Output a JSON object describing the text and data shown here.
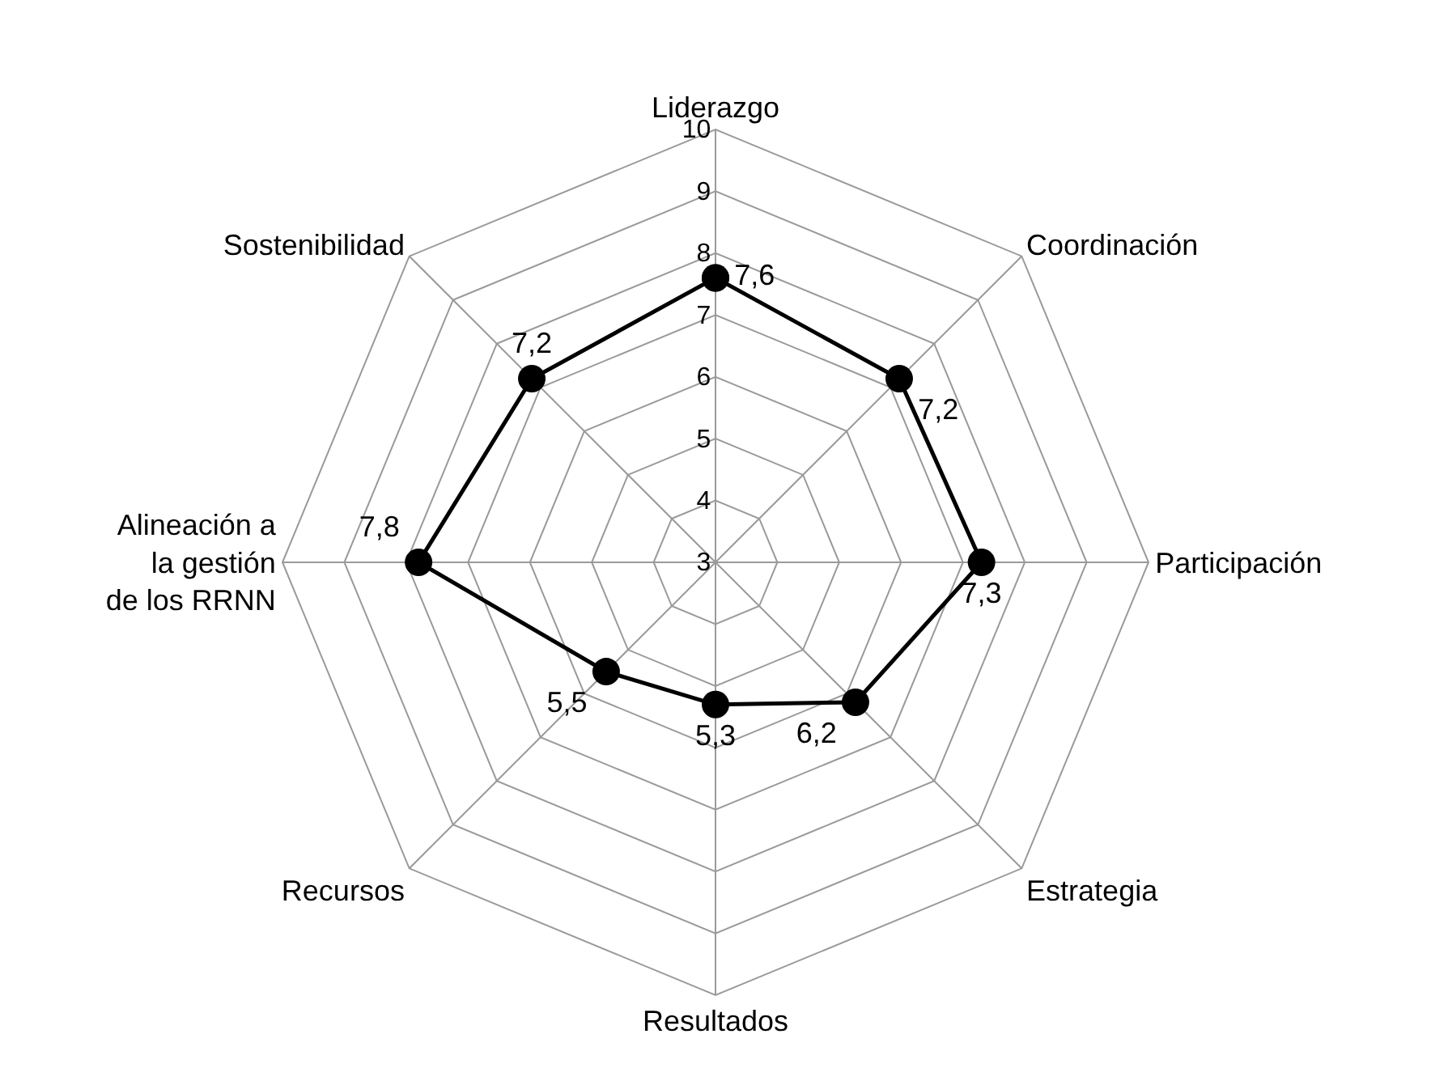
{
  "chart_data": {
    "type": "radar",
    "categories": [
      "Liderazgo",
      "Coordinación",
      "Participación",
      "Estrategia",
      "Resultados",
      "Recursos",
      "Alineación a la gestión de los RRNN",
      "Sostenibilidad"
    ],
    "series": [
      {
        "color": "#000000",
        "values": [
          7.6,
          7.2,
          7.3,
          6.2,
          5.3,
          5.5,
          7.8,
          7.2
        ],
        "value_labels": [
          "7,6",
          "7,2",
          "7,3",
          "6,2",
          "5,3",
          "5,5",
          "7,8",
          "7,2"
        ]
      }
    ],
    "ylim": [
      3,
      10
    ],
    "yticks": [
      3,
      4,
      5,
      6,
      7,
      8,
      9,
      10
    ],
    "grid": true,
    "marker": "circle",
    "line_style": "solid"
  }
}
